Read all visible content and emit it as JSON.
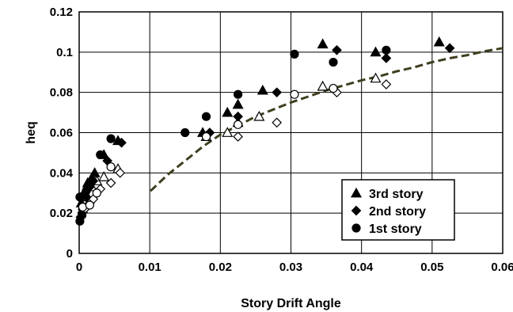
{
  "chart_data": {
    "type": "scatter",
    "title": "",
    "xlabel": "Story Drift Angle",
    "ylabel": "heq",
    "xlim": [
      0,
      0.06
    ],
    "ylim": [
      0,
      0.12
    ],
    "x_ticks": [
      0,
      0.01,
      0.02,
      0.03,
      0.04,
      0.05,
      0.06
    ],
    "x_tick_labels": [
      "0",
      "0.01",
      "0.02",
      "0.03",
      "0.04",
      "0.05",
      "0.06"
    ],
    "y_ticks": [
      0,
      0.02,
      0.04,
      0.06,
      0.08,
      0.1,
      0.12
    ],
    "y_tick_labels": [
      "0",
      "0.02",
      "0.04",
      "0.06",
      "0.08",
      "0.1",
      "0.12"
    ],
    "grid": true,
    "legend_position": "bottom-right",
    "series": [
      {
        "name": "3rd story",
        "marker": "triangle",
        "filled": true,
        "points": [
          [
            0.0003,
            0.025
          ],
          [
            0.0008,
            0.03
          ],
          [
            0.0012,
            0.035
          ],
          [
            0.0017,
            0.037
          ],
          [
            0.0022,
            0.04
          ],
          [
            0.0035,
            0.049
          ],
          [
            0.0055,
            0.056
          ],
          [
            0.0175,
            0.06
          ],
          [
            0.021,
            0.07
          ],
          [
            0.0225,
            0.074
          ],
          [
            0.026,
            0.081
          ],
          [
            0.0345,
            0.104
          ],
          [
            0.042,
            0.1
          ],
          [
            0.051,
            0.105
          ]
        ]
      },
      {
        "name": "3rd story (open)",
        "marker": "triangle",
        "filled": false,
        "points": [
          [
            0.0005,
            0.022
          ],
          [
            0.0012,
            0.028
          ],
          [
            0.0018,
            0.033
          ],
          [
            0.0025,
            0.036
          ],
          [
            0.0035,
            0.038
          ],
          [
            0.0055,
            0.042
          ],
          [
            0.018,
            0.058
          ],
          [
            0.021,
            0.06
          ],
          [
            0.0225,
            0.065
          ],
          [
            0.0255,
            0.068
          ],
          [
            0.0345,
            0.083
          ],
          [
            0.042,
            0.087
          ]
        ]
      },
      {
        "name": "2nd story",
        "marker": "diamond",
        "filled": true,
        "points": [
          [
            0.0002,
            0.018
          ],
          [
            0.0005,
            0.022
          ],
          [
            0.001,
            0.028
          ],
          [
            0.0015,
            0.033
          ],
          [
            0.002,
            0.036
          ],
          [
            0.004,
            0.046
          ],
          [
            0.006,
            0.055
          ],
          [
            0.0185,
            0.06
          ],
          [
            0.0225,
            0.068
          ],
          [
            0.028,
            0.08
          ],
          [
            0.0365,
            0.101
          ],
          [
            0.0435,
            0.097
          ],
          [
            0.0525,
            0.102
          ]
        ]
      },
      {
        "name": "2nd story (open)",
        "marker": "diamond",
        "filled": false,
        "points": [
          [
            0.0008,
            0.022
          ],
          [
            0.0015,
            0.025
          ],
          [
            0.002,
            0.027
          ],
          [
            0.003,
            0.032
          ],
          [
            0.0045,
            0.035
          ],
          [
            0.0058,
            0.04
          ],
          [
            0.0225,
            0.058
          ],
          [
            0.028,
            0.065
          ],
          [
            0.0365,
            0.08
          ],
          [
            0.0435,
            0.084
          ]
        ]
      },
      {
        "name": "1st story",
        "marker": "circle",
        "filled": true,
        "points": [
          [
            0.0001,
            0.016
          ],
          [
            0.0001,
            0.028
          ],
          [
            0.0004,
            0.019
          ],
          [
            0.0007,
            0.029
          ],
          [
            0.001,
            0.031
          ],
          [
            0.0015,
            0.035
          ],
          [
            0.003,
            0.049
          ],
          [
            0.0045,
            0.057
          ],
          [
            0.015,
            0.06
          ],
          [
            0.018,
            0.068
          ],
          [
            0.0225,
            0.079
          ],
          [
            0.0305,
            0.099
          ],
          [
            0.036,
            0.095
          ],
          [
            0.0435,
            0.101
          ]
        ]
      },
      {
        "name": "1st story (open)",
        "marker": "circle",
        "filled": false,
        "points": [
          [
            0.0005,
            0.023
          ],
          [
            0.0015,
            0.024
          ],
          [
            0.0025,
            0.03
          ],
          [
            0.0045,
            0.043
          ],
          [
            0.018,
            0.058
          ],
          [
            0.0225,
            0.064
          ],
          [
            0.0305,
            0.079
          ],
          [
            0.036,
            0.082
          ]
        ]
      },
      {
        "name": "curve",
        "type": "line",
        "style": "dashed",
        "color": "#3f3f1f",
        "points": [
          [
            0.0101,
            0.031
          ],
          [
            0.0125,
            0.039
          ],
          [
            0.015,
            0.046
          ],
          [
            0.0175,
            0.053
          ],
          [
            0.02,
            0.059
          ],
          [
            0.0225,
            0.0635
          ],
          [
            0.025,
            0.068
          ],
          [
            0.0275,
            0.0715
          ],
          [
            0.03,
            0.075
          ],
          [
            0.0325,
            0.078
          ],
          [
            0.035,
            0.081
          ],
          [
            0.0375,
            0.0835
          ],
          [
            0.04,
            0.086
          ],
          [
            0.0425,
            0.088
          ],
          [
            0.045,
            0.0905
          ],
          [
            0.0475,
            0.0925
          ],
          [
            0.05,
            0.095
          ],
          [
            0.0525,
            0.097
          ],
          [
            0.055,
            0.0985
          ],
          [
            0.0575,
            0.1005
          ],
          [
            0.06,
            0.102
          ]
        ]
      }
    ],
    "legend": [
      {
        "label": "3rd story",
        "marker": "triangle"
      },
      {
        "label": "2nd story",
        "marker": "diamond"
      },
      {
        "label": "1st story",
        "marker": "circle"
      }
    ]
  }
}
